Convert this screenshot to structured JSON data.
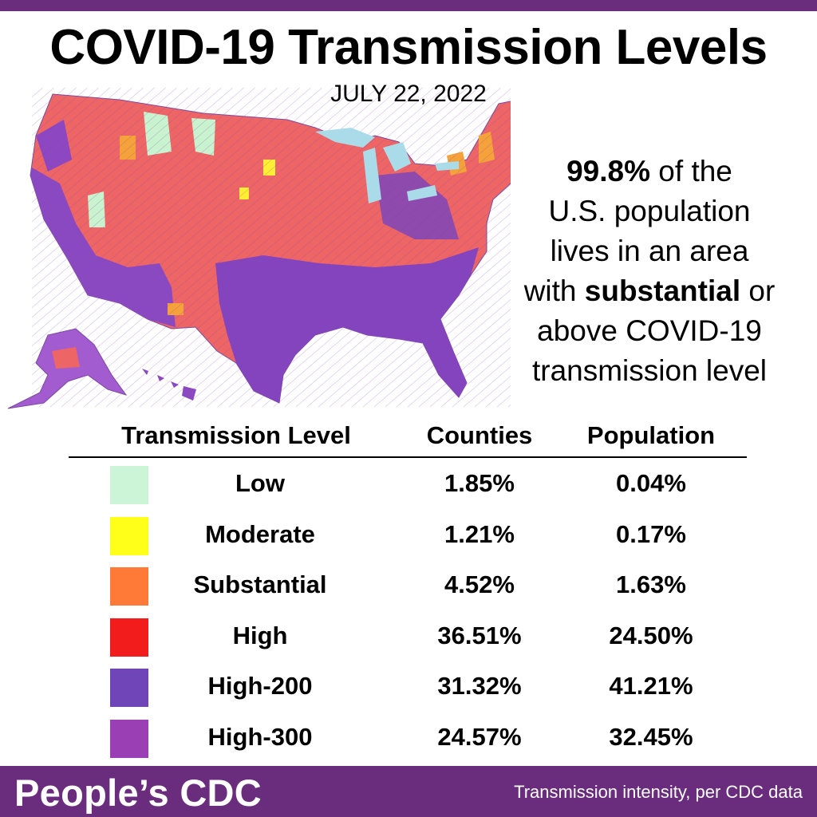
{
  "title": "COVID-19 Transmission Levels",
  "date": "JULY 22, 2022",
  "callout": {
    "highlight": "99.8%",
    "line1_rest": " of the",
    "line2": "U.S. population",
    "line3": "lives in an area",
    "line4_pre": "with ",
    "line4_bold": "substantial",
    "line4_post": " or",
    "line5": "above COVID-19",
    "line6": "transmission level"
  },
  "legend": {
    "headers": {
      "level": "Transmission Level",
      "counties": "Counties",
      "population": "Population"
    },
    "rows": [
      {
        "level": "Low",
        "counties": "1.85%",
        "population": "0.04%",
        "color": "#ccf5d8"
      },
      {
        "level": "Moderate",
        "counties": "1.21%",
        "population": "0.17%",
        "color": "#ffff1a"
      },
      {
        "level": "Substantial",
        "counties": "4.52%",
        "population": "1.63%",
        "color": "#ff7a36"
      },
      {
        "level": "High",
        "counties": "36.51%",
        "population": "24.50%",
        "color": "#f21c1c"
      },
      {
        "level": "High-200",
        "counties": "31.32%",
        "population": "41.21%",
        "color": "#7045b8"
      },
      {
        "level": "High-300",
        "counties": "24.57%",
        "population": "32.45%",
        "color": "#9b3fb5"
      }
    ]
  },
  "footer": {
    "brand": "People’s CDC",
    "source": "Transmission intensity, per CDC data"
  },
  "colors": {
    "brand_purple": "#6a2d7d",
    "map_red": "#ef5f5f",
    "map_purple": "#8a48c0",
    "lake_blue": "#a9dbe8"
  }
}
